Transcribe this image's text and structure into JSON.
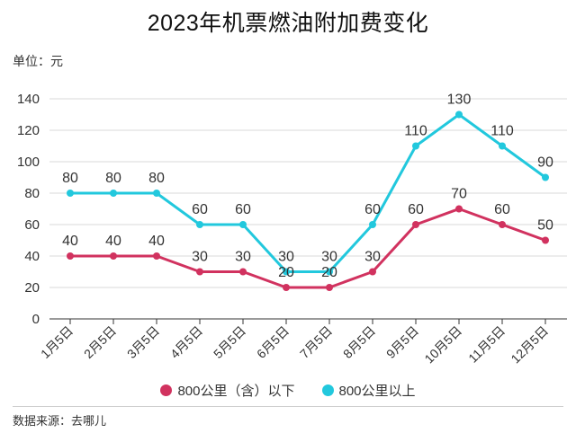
{
  "title": "2023年机票燃油附加费变化",
  "unit": "单位：元",
  "source": "数据来源：去哪儿",
  "colors": {
    "series_low": "#d1325f",
    "series_high": "#22c8dd",
    "grid": "#d9d9d9",
    "axis": "#333333"
  },
  "chart_data": {
    "type": "line",
    "title": "2023年机票燃油附加费变化",
    "xlabel": "",
    "ylabel": "",
    "categories": [
      "1月5日",
      "2月5日",
      "3月5日",
      "4月5日",
      "5月5日",
      "6月5日",
      "7月5日",
      "8月5日",
      "9月5日",
      "10月5日",
      "11月5日",
      "12月5日"
    ],
    "series": [
      {
        "name": "800公里（含）以下",
        "values": [
          40,
          40,
          40,
          30,
          30,
          20,
          20,
          30,
          60,
          70,
          60,
          50
        ]
      },
      {
        "name": "800公里以上",
        "values": [
          80,
          80,
          80,
          60,
          60,
          30,
          30,
          60,
          110,
          130,
          110,
          90
        ]
      }
    ],
    "ylim": [
      0,
      140
    ],
    "yticks": [
      0,
      20,
      40,
      60,
      80,
      100,
      120,
      140
    ],
    "grid": true,
    "legend": "bottom-center"
  }
}
